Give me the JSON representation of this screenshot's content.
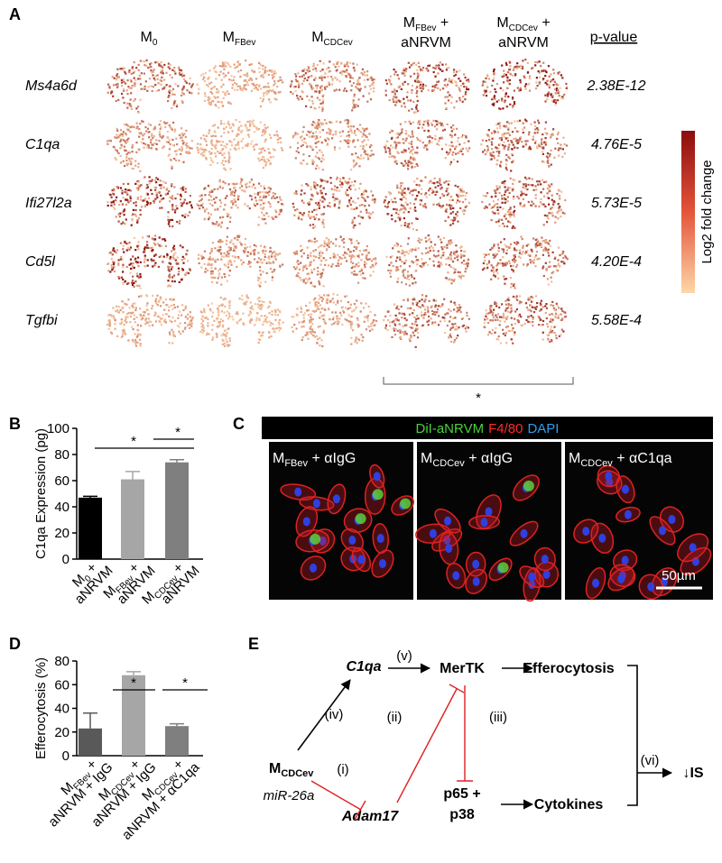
{
  "panel_a": {
    "label": "A",
    "columns": [
      {
        "main": "M",
        "sub": "0"
      },
      {
        "main": "M",
        "sub": "FBev"
      },
      {
        "main": "M",
        "sub": "CDCev"
      },
      {
        "main": "M",
        "sub": "FBev",
        "suffix": " +",
        "line2": "aNRVM"
      },
      {
        "main": "M",
        "sub": "CDCev",
        "suffix": " +",
        "line2": "aNRVM"
      }
    ],
    "pvalue_header": "p-value",
    "rows": [
      {
        "gene": "Ms4a6d",
        "pvalue": "2.38E-12"
      },
      {
        "gene": "C1qa",
        "pvalue": "4.76E-5"
      },
      {
        "gene": "Ifi27l2a",
        "pvalue": "5.73E-5"
      },
      {
        "gene": "Cd5l",
        "pvalue": "4.20E-4"
      },
      {
        "gene": "Tgfbi",
        "pvalue": "5.58E-4"
      }
    ],
    "colorbar_label": "Log2 fold change",
    "significance": "*"
  },
  "chart_data": [
    {
      "type": "bar",
      "panel_label": "B",
      "ylabel": "C1qa Expression (pg)",
      "categories": [
        {
          "main": "M",
          "sub": "0",
          "suffix": " +",
          "line2": "aNRVM"
        },
        {
          "main": "M",
          "sub": "FBev",
          "suffix": " +",
          "line2": "aNRVM"
        },
        {
          "main": "M",
          "sub": "CDCev",
          "suffix": " +",
          "line2": "aNRVM"
        }
      ],
      "values": [
        47,
        61,
        74
      ],
      "errors": [
        1,
        6,
        2
      ],
      "colors": [
        "#000000",
        "#a6a6a6",
        "#7f7f7f"
      ],
      "ylim": [
        0,
        100
      ],
      "yticks": [
        0,
        20,
        40,
        60,
        80,
        100
      ],
      "significance": [
        "*",
        "*"
      ]
    },
    {
      "type": "bar",
      "panel_label": "D",
      "ylabel": "Efferocytosis (%)",
      "categories": [
        {
          "main": "M",
          "sub": "FBev",
          "suffix": " +",
          "line2": "aNRVM + IgG"
        },
        {
          "main": "M",
          "sub": "CDCev",
          "suffix": " +",
          "line2": "aNRVM + IgG"
        },
        {
          "main": "M",
          "sub": "CDCev",
          "suffix": " +",
          "line2": "aNRVM + αC1qa"
        }
      ],
      "values": [
        23,
        68,
        25
      ],
      "errors": [
        13,
        3,
        2
      ],
      "colors": [
        "#595959",
        "#a6a6a6",
        "#7f7f7f"
      ],
      "ylim": [
        0,
        80
      ],
      "yticks": [
        0,
        20,
        40,
        60,
        80
      ],
      "significance": [
        "*",
        "*"
      ]
    }
  ],
  "panel_c": {
    "label": "C",
    "header": [
      {
        "text": "DiI-aNRVM",
        "color": "#4cd13b"
      },
      {
        "text": "F4/80",
        "color": "#ff2a2a"
      },
      {
        "text": "DAPI",
        "color": "#2aa0f0"
      }
    ],
    "panels": [
      {
        "main": "M",
        "sub": "FBev",
        "suffix": " + αIgG"
      },
      {
        "main": "M",
        "sub": "CDCev",
        "suffix": " + αIgG"
      },
      {
        "main": "M",
        "sub": "CDCev",
        "suffix": " + αC1qa"
      }
    ],
    "scale_bar": "50µm"
  },
  "panel_e": {
    "label": "E",
    "c1qa": "C1qa",
    "mertk": "MerTK",
    "efferocytosis": "Efferocytosis",
    "source": {
      "main": "M",
      "sub": "CDCev"
    },
    "mirna": "miR-26a",
    "adam17": "Adam17",
    "p65": [
      "p65 +",
      "p38"
    ],
    "cytokines": "Cytokines",
    "outcome": "↓IS",
    "steps": [
      "(i)",
      "(ii)",
      "(iii)",
      "(iv)",
      "(v)",
      "(vi)"
    ]
  }
}
